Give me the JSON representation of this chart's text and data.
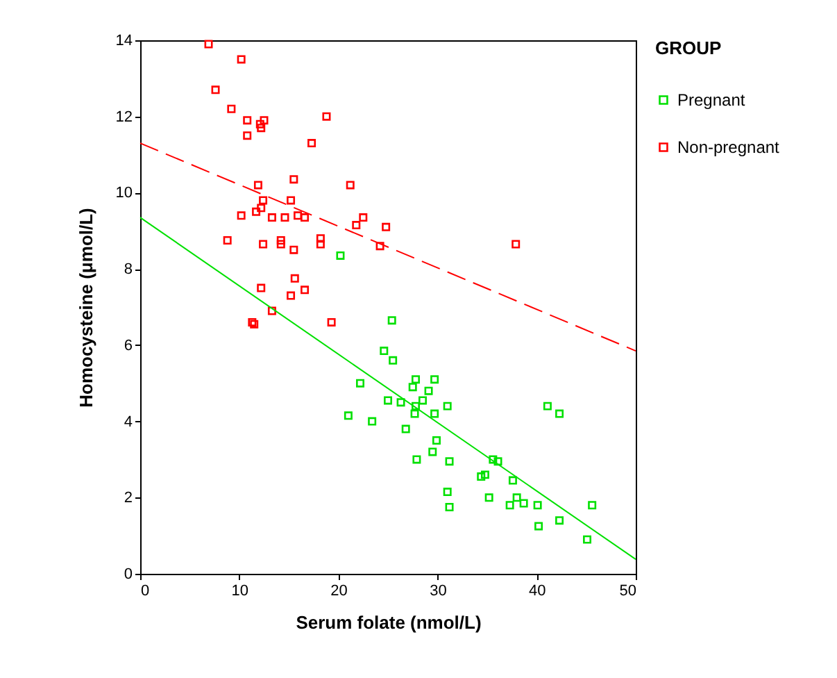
{
  "chart_data": {
    "type": "scatter",
    "xlabel": "Serum folate    (nmol/L)",
    "ylabel": "Homocysteine (μmol/L)",
    "legend_title": "GROUP",
    "legend": "right",
    "grid": false,
    "xlim": [
      0,
      50
    ],
    "xticks": [
      0,
      10,
      20,
      30,
      40,
      50
    ],
    "ylim": [
      0,
      14
    ],
    "yticks": [
      0,
      2,
      4,
      6,
      8,
      10,
      12,
      14
    ],
    "series": [
      {
        "name": "Pregnant",
        "color": "#00e000",
        "marker": "square",
        "x": [
          20.2,
          25.4,
          24.6,
          25.5,
          22.2,
          25.0,
          26.3,
          21.0,
          23.4,
          26.8,
          27.8,
          29.7,
          27.5,
          29.1,
          28.5,
          27.8,
          27.7,
          29.7,
          31.0,
          41.1,
          42.3,
          29.9,
          29.5,
          27.9,
          31.2,
          35.6,
          36.1,
          34.4,
          34.8,
          37.6,
          31.0,
          35.2,
          38.0,
          38.7,
          37.3,
          40.1,
          45.6,
          31.2,
          42.3,
          40.2,
          45.1
        ],
        "values": [
          8.35,
          6.65,
          5.85,
          5.6,
          5.0,
          4.55,
          4.5,
          4.15,
          4.0,
          3.8,
          5.1,
          5.1,
          4.9,
          4.8,
          4.55,
          4.4,
          4.2,
          4.2,
          4.4,
          4.4,
          4.2,
          3.5,
          3.2,
          3.0,
          2.95,
          3.0,
          2.95,
          2.55,
          2.6,
          2.45,
          2.15,
          2.0,
          2.0,
          1.85,
          1.8,
          1.8,
          1.8,
          1.75,
          1.4,
          1.25,
          0.9
        ]
      },
      {
        "name": "Non-pregnant",
        "color": "#ff0000",
        "marker": "square",
        "x": [
          6.9,
          10.2,
          7.6,
          9.2,
          10.8,
          12.5,
          12.1,
          12.2,
          10.8,
          18.8,
          17.3,
          11.9,
          15.5,
          21.2,
          12.4,
          12.2,
          11.7,
          15.2,
          10.2,
          13.3,
          14.6,
          15.9,
          16.6,
          22.5,
          21.8,
          24.8,
          8.8,
          12.4,
          14.2,
          14.2,
          18.2,
          18.2,
          15.5,
          24.2,
          12.2,
          15.6,
          15.2,
          16.6,
          11.3,
          11.5,
          19.3,
          37.9,
          13.3
        ],
        "values": [
          13.9,
          13.5,
          12.7,
          12.2,
          11.9,
          11.9,
          11.8,
          11.7,
          11.5,
          12.0,
          11.3,
          10.2,
          10.35,
          10.2,
          9.8,
          9.6,
          9.5,
          9.8,
          9.4,
          9.35,
          9.35,
          9.4,
          9.35,
          9.35,
          9.15,
          9.1,
          8.75,
          8.65,
          8.75,
          8.65,
          8.8,
          8.65,
          8.5,
          8.6,
          7.5,
          7.75,
          7.3,
          7.45,
          6.6,
          6.55,
          6.6,
          8.65,
          6.9
        ]
      },
      {
        "type": "line",
        "color": "#00e000",
        "line_style": "solid",
        "x": [
          0,
          50
        ],
        "values": [
          9.35,
          0.38
        ]
      },
      {
        "type": "line",
        "color": "#ff0000",
        "line_style": "dashed",
        "x": [
          0,
          50
        ],
        "values": [
          11.3,
          5.85
        ]
      }
    ]
  }
}
